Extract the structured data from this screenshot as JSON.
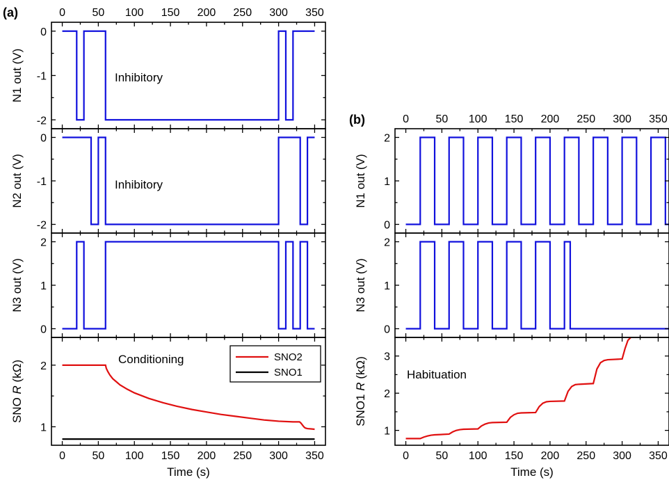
{
  "colors": {
    "blue": "#1010dd",
    "red": "#e01010",
    "black": "#000000"
  },
  "panel_labels": {
    "a": "(a)",
    "b": "(b)"
  },
  "chart_data": [
    {
      "id": "a1",
      "type": "line",
      "ylabel": "N1 out (V)",
      "annotation": "Inhibitory",
      "xlim": [
        -15,
        365
      ],
      "ylim": [
        -2.2,
        0.2
      ],
      "xticks": [
        0,
        50,
        100,
        150,
        200,
        250,
        300,
        350
      ],
      "yticks": [
        -2,
        -1,
        0
      ],
      "top_tick_labels": true,
      "bottom_tick_labels": false,
      "series": [
        {
          "color": "blue",
          "x": [
            0,
            20,
            20,
            30,
            30,
            60,
            60,
            300,
            300,
            310,
            310,
            320,
            320,
            350
          ],
          "y": [
            0,
            0,
            -2,
            -2,
            0,
            0,
            -2,
            -2,
            0,
            0,
            -2,
            -2,
            0,
            0
          ]
        }
      ]
    },
    {
      "id": "a2",
      "type": "line",
      "ylabel": "N2 out (V)",
      "annotation": "Inhibitory",
      "xlim": [
        -15,
        365
      ],
      "ylim": [
        -2.2,
        0.2
      ],
      "xticks": [
        0,
        50,
        100,
        150,
        200,
        250,
        300,
        350
      ],
      "yticks": [
        -2,
        -1,
        0
      ],
      "top_tick_labels": false,
      "bottom_tick_labels": false,
      "series": [
        {
          "color": "blue",
          "x": [
            0,
            40,
            40,
            50,
            50,
            60,
            60,
            300,
            300,
            330,
            330,
            340,
            340,
            350
          ],
          "y": [
            0,
            0,
            -2,
            -2,
            0,
            0,
            -2,
            -2,
            0,
            0,
            -2,
            -2,
            0,
            0
          ]
        }
      ]
    },
    {
      "id": "a3",
      "type": "line",
      "ylabel": "N3 out (V)",
      "annotation": "",
      "xlim": [
        -15,
        365
      ],
      "ylim": [
        -0.2,
        2.2
      ],
      "xticks": [
        0,
        50,
        100,
        150,
        200,
        250,
        300,
        350
      ],
      "yticks": [
        0,
        1,
        2
      ],
      "top_tick_labels": false,
      "bottom_tick_labels": false,
      "series": [
        {
          "color": "blue",
          "x": [
            0,
            20,
            20,
            30,
            30,
            60,
            60,
            300,
            300,
            310,
            310,
            320,
            320,
            330,
            330,
            340,
            340,
            350
          ],
          "y": [
            0,
            0,
            2,
            2,
            0,
            0,
            2,
            2,
            0,
            0,
            2,
            2,
            0,
            0,
            2,
            2,
            0,
            0
          ]
        }
      ]
    },
    {
      "id": "a4",
      "type": "line",
      "ylabel": "SNO R (kΩ)",
      "ylabel_prefix": "SNO ",
      "ylabel_italic": "R",
      "ylabel_suffix": " (kΩ)",
      "annotation": "Conditioning",
      "xlim": [
        -15,
        365
      ],
      "ylim": [
        0.7,
        2.45
      ],
      "xticks": [
        0,
        50,
        100,
        150,
        200,
        250,
        300,
        350
      ],
      "yticks": [
        1,
        2
      ],
      "xlabel": "Time (s)",
      "top_tick_labels": false,
      "bottom_tick_labels": true,
      "legend": {
        "placement": "top-right",
        "entries": [
          {
            "name": "SNO2",
            "color": "red"
          },
          {
            "name": "SNO1",
            "color": "black"
          }
        ]
      },
      "series": [
        {
          "name": "SNO2",
          "color": "red",
          "x": [
            0,
            60,
            61,
            63,
            66,
            70,
            75,
            80,
            90,
            100,
            120,
            140,
            160,
            180,
            200,
            220,
            240,
            260,
            280,
            300,
            320,
            329,
            331,
            333,
            335,
            337,
            340,
            345,
            350
          ],
          "y": [
            2.0,
            2.0,
            1.95,
            1.9,
            1.84,
            1.78,
            1.73,
            1.68,
            1.61,
            1.55,
            1.46,
            1.39,
            1.33,
            1.28,
            1.24,
            1.2,
            1.17,
            1.14,
            1.11,
            1.09,
            1.08,
            1.08,
            1.06,
            1.03,
            1.0,
            0.98,
            0.97,
            0.965,
            0.96
          ]
        },
        {
          "name": "SNO1",
          "color": "black",
          "x": [
            0,
            350
          ],
          "y": [
            0.8,
            0.8
          ]
        }
      ]
    },
    {
      "id": "b1",
      "type": "line",
      "ylabel": "N1 out (V)",
      "annotation": "",
      "xlim": [
        -15,
        365
      ],
      "ylim": [
        -0.2,
        2.2
      ],
      "xticks": [
        0,
        50,
        100,
        150,
        200,
        250,
        300,
        350
      ],
      "yticks": [
        0,
        1,
        2
      ],
      "top_tick_labels": true,
      "bottom_tick_labels": false,
      "series": [
        {
          "color": "blue",
          "x": [
            0,
            20,
            20,
            40,
            40,
            60,
            60,
            80,
            80,
            100,
            100,
            120,
            120,
            140,
            140,
            160,
            160,
            180,
            180,
            200,
            200,
            220,
            220,
            240,
            240,
            260,
            260,
            280,
            280,
            300,
            300,
            320,
            320,
            340,
            340,
            360,
            360,
            365
          ],
          "y": [
            0,
            0,
            2,
            2,
            0,
            0,
            2,
            2,
            0,
            0,
            2,
            2,
            0,
            0,
            2,
            2,
            0,
            0,
            2,
            2,
            0,
            0,
            2,
            2,
            0,
            0,
            2,
            2,
            0,
            0,
            2,
            2,
            0,
            0,
            2,
            2,
            0,
            0
          ]
        }
      ]
    },
    {
      "id": "b2",
      "type": "line",
      "ylabel": "N3 out (V)",
      "annotation": "",
      "xlim": [
        -15,
        365
      ],
      "ylim": [
        -0.2,
        2.2
      ],
      "xticks": [
        0,
        50,
        100,
        150,
        200,
        250,
        300,
        350
      ],
      "yticks": [
        0,
        1,
        2
      ],
      "top_tick_labels": false,
      "bottom_tick_labels": false,
      "series": [
        {
          "color": "blue",
          "x": [
            0,
            20,
            20,
            40,
            40,
            60,
            60,
            80,
            80,
            100,
            100,
            120,
            120,
            140,
            140,
            160,
            160,
            180,
            180,
            200,
            200,
            220,
            220,
            228,
            228,
            365
          ],
          "y": [
            0,
            0,
            2,
            2,
            0,
            0,
            2,
            2,
            0,
            0,
            2,
            2,
            0,
            0,
            2,
            2,
            0,
            0,
            2,
            2,
            0,
            0,
            2,
            2,
            0,
            0
          ]
        }
      ]
    },
    {
      "id": "b3",
      "type": "line",
      "ylabel": "SNO1 R (kΩ)",
      "ylabel_prefix": "SNO1 ",
      "ylabel_italic": "R",
      "ylabel_suffix": " (kΩ)",
      "annotation": "Habituation",
      "xlim": [
        -15,
        365
      ],
      "ylim": [
        0.6,
        3.5
      ],
      "xticks": [
        0,
        50,
        100,
        150,
        200,
        250,
        300,
        350
      ],
      "yticks": [
        1,
        2,
        3
      ],
      "xlabel": "Time (s)",
      "top_tick_labels": false,
      "bottom_tick_labels": true,
      "series": [
        {
          "name": "SNO1",
          "color": "red",
          "x": [
            0,
            20,
            25,
            30,
            35,
            40,
            60,
            65,
            70,
            75,
            80,
            100,
            105,
            110,
            115,
            120,
            140,
            145,
            150,
            155,
            160,
            180,
            185,
            190,
            195,
            200,
            220,
            225,
            230,
            235,
            240,
            260,
            265,
            270,
            275,
            280,
            300,
            304,
            308,
            312
          ],
          "y": [
            0.78,
            0.78,
            0.82,
            0.85,
            0.87,
            0.88,
            0.9,
            0.96,
            1.0,
            1.02,
            1.03,
            1.04,
            1.12,
            1.17,
            1.2,
            1.21,
            1.22,
            1.35,
            1.42,
            1.46,
            1.47,
            1.48,
            1.64,
            1.73,
            1.77,
            1.78,
            1.79,
            2.05,
            2.18,
            2.23,
            2.24,
            2.26,
            2.65,
            2.82,
            2.88,
            2.9,
            2.92,
            3.2,
            3.42,
            3.5
          ]
        }
      ]
    }
  ]
}
